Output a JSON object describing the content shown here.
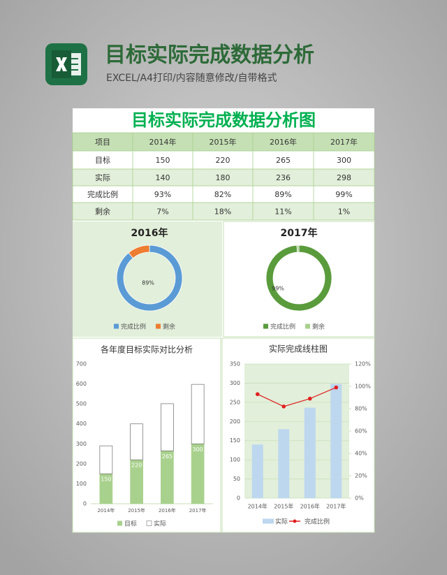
{
  "header": {
    "title": "目标实际完成数据分析",
    "subtitle": "EXCEL/A4打印/内容随意修改/自带格式"
  },
  "sheet_title": "目标实际完成数据分析图",
  "table": {
    "header": [
      "项目",
      "2014年",
      "2015年",
      "2016年",
      "2017年"
    ],
    "rows": [
      [
        "目标",
        "150",
        "220",
        "265",
        "300"
      ],
      [
        "实际",
        "140",
        "180",
        "236",
        "298"
      ],
      [
        "完成比例",
        "93%",
        "82%",
        "89%",
        "99%"
      ],
      [
        "剩余",
        "7%",
        "18%",
        "11%",
        "1%"
      ]
    ]
  },
  "chart_data": [
    {
      "type": "donut",
      "title": "2016年",
      "categories": [
        "完成比例",
        "剩余"
      ],
      "values": [
        89,
        11
      ],
      "value_labels": [
        "89%",
        null
      ],
      "colors": [
        "#5b9bd5",
        "#ed7d31"
      ]
    },
    {
      "type": "donut",
      "title": "2017年",
      "categories": [
        "完成比例",
        "剩余"
      ],
      "values": [
        99,
        1
      ],
      "value_labels": [
        "99%",
        null
      ],
      "colors": [
        "#5a9b3c",
        "#a9d18e"
      ]
    },
    {
      "type": "stacked_bar",
      "title": "各年度目标实际对比分析",
      "categories": [
        "2014年",
        "2015年",
        "2016年",
        "2017年"
      ],
      "series": [
        {
          "name": "目标",
          "color": "#a9d18e",
          "values": [
            150,
            220,
            265,
            300
          ],
          "data_labels": true
        },
        {
          "name": "实际",
          "color": "#ffffff",
          "values": [
            140,
            180,
            236,
            298
          ]
        }
      ],
      "ylim": [
        0,
        700
      ],
      "yticks": [
        0,
        100,
        200,
        300,
        400,
        500,
        600,
        700
      ],
      "grid": false
    },
    {
      "type": "bar_line",
      "title": "实际完成线柱图",
      "categories": [
        "2014年",
        "2015年",
        "2016年",
        "2017年"
      ],
      "series": [
        {
          "name": "实际",
          "color": "#bdd7ee",
          "values": [
            140,
            180,
            236,
            298
          ]
        },
        {
          "name": "完成比例",
          "color": "#e02020",
          "values": [
            93,
            82,
            89,
            99
          ],
          "axis": "y2"
        }
      ],
      "ylim": [
        0,
        350
      ],
      "yticks": [
        0,
        50,
        100,
        150,
        200,
        250,
        300,
        350
      ],
      "y2lim": [
        0,
        120
      ],
      "y2ticks": [
        {
          "value": 0,
          "label": "0%"
        },
        {
          "value": 20,
          "label": "20%"
        },
        {
          "value": 40,
          "label": "40%"
        },
        {
          "value": 60,
          "label": "60%"
        },
        {
          "value": 80,
          "label": "80%"
        },
        {
          "value": 100,
          "label": "100%"
        },
        {
          "value": 120,
          "label": "120%"
        }
      ],
      "grid": true
    }
  ]
}
